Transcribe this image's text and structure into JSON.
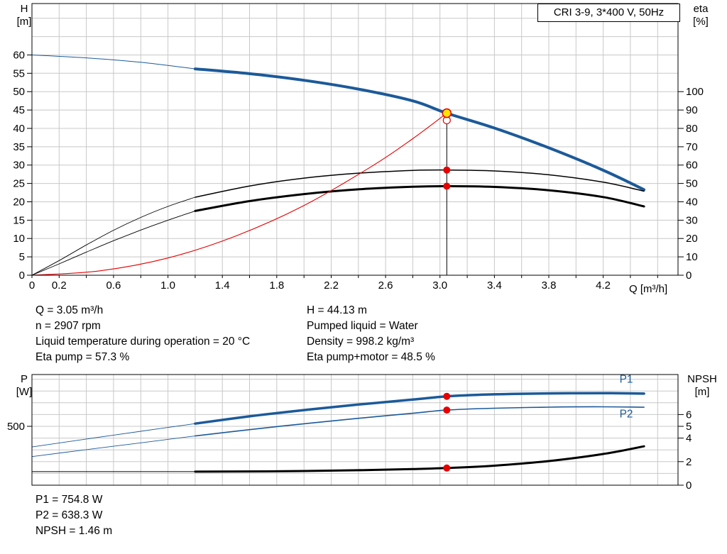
{
  "colors": {
    "curve_blue": "#1c5a99",
    "curve_black": "#000000",
    "curve_red": "#e60000",
    "marker_red": "#e60000",
    "marker_yellow": "#ffe600",
    "grid": "#c8c8c8",
    "axis": "#000000",
    "text": "#000000"
  },
  "info_left": [
    "Q = 3.05 m³/h",
    "n = 2907 rpm",
    "Liquid temperature during operation = 20 °C",
    "Eta pump = 57.3 %"
  ],
  "info_right": [
    "H = 44.13 m",
    "Pumped liquid = Water",
    "Density = 998.2 kg/m³",
    "Eta pump+motor = 48.5 %"
  ],
  "results": [
    "P1 = 754.8 W",
    "P2 = 638.3 W",
    "NPSH = 1.46 m"
  ],
  "chart_data": [
    {
      "type": "line",
      "name": "qh-eta-chart",
      "title": "CRI 3-9, 3*400 V, 50Hz",
      "xlabel": "Q [m³/h]",
      "left_axis": {
        "title": "H",
        "unit": "[m]"
      },
      "right_axis": {
        "title": "eta",
        "unit": "[%]"
      },
      "xlim": [
        0,
        4.75
      ],
      "ylim_left": [
        0,
        74
      ],
      "ylim_right": [
        0,
        148
      ],
      "grid": {
        "x_step": 0.2,
        "y_step": 5
      },
      "x_tick_step": 0.2,
      "x_ticks": [
        {
          "v": 0,
          "label": "0"
        },
        {
          "v": 0.2,
          "label": "0.2"
        },
        {
          "v": 0.6,
          "label": "0.6"
        },
        {
          "v": 1.0,
          "label": "1.0"
        },
        {
          "v": 1.4,
          "label": "1.4"
        },
        {
          "v": 1.8,
          "label": "1.8"
        },
        {
          "v": 2.2,
          "label": "2.2"
        },
        {
          "v": 2.6,
          "label": "2.6"
        },
        {
          "v": 3.0,
          "label": "3.0"
        },
        {
          "v": 3.4,
          "label": "3.4"
        },
        {
          "v": 3.8,
          "label": "3.8"
        },
        {
          "v": 4.2,
          "label": "4.2"
        }
      ],
      "left_ticks": [
        {
          "v": 0,
          "label": "0"
        },
        {
          "v": 5,
          "label": "5"
        },
        {
          "v": 10,
          "label": "10"
        },
        {
          "v": 15,
          "label": "15"
        },
        {
          "v": 20,
          "label": "20"
        },
        {
          "v": 25,
          "label": "25"
        },
        {
          "v": 30,
          "label": "30"
        },
        {
          "v": 35,
          "label": "35"
        },
        {
          "v": 40,
          "label": "40"
        },
        {
          "v": 45,
          "label": "45"
        },
        {
          "v": 50,
          "label": "50"
        },
        {
          "v": 55,
          "label": "55"
        },
        {
          "v": 60,
          "label": "60"
        }
      ],
      "right_ticks": [
        {
          "v": 0,
          "label": "0"
        },
        {
          "v": 10,
          "label": "10"
        },
        {
          "v": 20,
          "label": "20"
        },
        {
          "v": 30,
          "label": "30"
        },
        {
          "v": 40,
          "label": "40"
        },
        {
          "v": 50,
          "label": "50"
        },
        {
          "v": 60,
          "label": "60"
        },
        {
          "v": 70,
          "label": "70"
        },
        {
          "v": 80,
          "label": "80"
        },
        {
          "v": 90,
          "label": "90"
        },
        {
          "v": 100,
          "label": "100"
        }
      ],
      "series": [
        {
          "name": "head-curve-ext",
          "axis": "left",
          "color": "#1c5a99",
          "width": 1,
          "points": [
            [
              0,
              60
            ],
            [
              0.4,
              59.2
            ],
            [
              0.8,
              58.0
            ],
            [
              1.2,
              56.2
            ]
          ]
        },
        {
          "name": "head-curve",
          "axis": "left",
          "color": "#1c5a99",
          "width": 4,
          "points": [
            [
              1.2,
              56.2
            ],
            [
              1.6,
              54.9
            ],
            [
              2.0,
              53.1
            ],
            [
              2.4,
              50.7
            ],
            [
              2.8,
              47.5
            ],
            [
              3.05,
              44.13
            ],
            [
              3.4,
              40.1
            ],
            [
              3.8,
              34.7
            ],
            [
              4.2,
              28.6
            ],
            [
              4.5,
              23.3
            ]
          ]
        },
        {
          "name": "eta-pump-curve-ext",
          "axis": "right",
          "color": "#000000",
          "width": 0.9,
          "points": [
            [
              0,
              0
            ],
            [
              0.2,
              8.0
            ],
            [
              0.4,
              16.5
            ],
            [
              0.6,
              24.5
            ],
            [
              0.8,
              31.5
            ],
            [
              1.0,
              37.5
            ],
            [
              1.2,
              42.5
            ]
          ]
        },
        {
          "name": "eta-pump-curve",
          "axis": "right",
          "color": "#000000",
          "width": 1.5,
          "points": [
            [
              1.2,
              42.5
            ],
            [
              1.6,
              48.6
            ],
            [
              2.0,
              52.9
            ],
            [
              2.4,
              55.6
            ],
            [
              2.8,
              57.1
            ],
            [
              3.05,
              57.3
            ],
            [
              3.4,
              56.8
            ],
            [
              3.8,
              54.7
            ],
            [
              4.2,
              50.7
            ],
            [
              4.5,
              45.8
            ]
          ]
        },
        {
          "name": "eta-pump-motor-curve-ext",
          "axis": "right",
          "color": "#000000",
          "width": 0.9,
          "points": [
            [
              0,
              0
            ],
            [
              0.2,
              6.2
            ],
            [
              0.4,
              12.6
            ],
            [
              0.6,
              18.8
            ],
            [
              0.8,
              24.6
            ],
            [
              1.0,
              30.0
            ],
            [
              1.2,
              35.0
            ]
          ]
        },
        {
          "name": "eta-pump-motor-curve",
          "axis": "right",
          "color": "#000000",
          "width": 3,
          "points": [
            [
              1.2,
              35.0
            ],
            [
              1.6,
              40.4
            ],
            [
              2.0,
              44.2
            ],
            [
              2.4,
              46.8
            ],
            [
              2.8,
              48.2
            ],
            [
              3.05,
              48.5
            ],
            [
              3.4,
              48.1
            ],
            [
              3.8,
              46.3
            ],
            [
              4.2,
              42.6
            ],
            [
              4.5,
              37.5
            ]
          ]
        },
        {
          "name": "system-curve",
          "axis": "left",
          "color": "#e60000",
          "width": 1.1,
          "points": [
            [
              0,
              0
            ],
            [
              0.5,
              1.2
            ],
            [
              1.0,
              4.7
            ],
            [
              1.5,
              10.7
            ],
            [
              2.0,
              19.0
            ],
            [
              2.5,
              29.7
            ],
            [
              2.8,
              37.2
            ],
            [
              3.05,
              44.13
            ]
          ]
        }
      ],
      "duty_line": {
        "q": 3.05,
        "v": 44.13
      },
      "markers": [
        {
          "axis": "left",
          "q": 3.05,
          "v": 42.2,
          "style": "open"
        },
        {
          "axis": "left",
          "q": 3.05,
          "v": 44.13,
          "style": "yellow"
        },
        {
          "axis": "right",
          "q": 3.05,
          "v": 57.3,
          "style": "red"
        },
        {
          "axis": "right",
          "q": 3.05,
          "v": 48.5,
          "style": "red"
        }
      ]
    },
    {
      "type": "line",
      "name": "power-npsh-chart",
      "xlabel": "",
      "left_axis": {
        "title": "P",
        "unit": "[W]"
      },
      "right_axis": {
        "title": "NPSH",
        "unit": "[m]"
      },
      "xlim": [
        0,
        4.75
      ],
      "ylim_left": [
        0,
        940
      ],
      "ylim_right": [
        0,
        9.4
      ],
      "grid": {
        "x_step": 0.2,
        "y_step": 100
      },
      "x_ticks": [],
      "left_ticks": [
        {
          "v": 500,
          "label": "500"
        }
      ],
      "right_ticks": [
        {
          "v": 0,
          "label": "0"
        },
        {
          "v": 2,
          "label": "2"
        },
        {
          "v": 4,
          "label": "4"
        },
        {
          "v": 5,
          "label": "5"
        },
        {
          "v": 6,
          "label": "6"
        }
      ],
      "series": [
        {
          "name": "p1-curve-ext",
          "axis": "left",
          "color": "#1c5a99",
          "width": 0.9,
          "points": [
            [
              0,
              325
            ],
            [
              0.4,
              392
            ],
            [
              0.8,
              458
            ],
            [
              1.2,
              523
            ]
          ]
        },
        {
          "name": "p1-curve",
          "axis": "left",
          "color": "#1c5a99",
          "width": 3.5,
          "points": [
            [
              1.2,
              523
            ],
            [
              1.6,
              585
            ],
            [
              2.0,
              638
            ],
            [
              2.4,
              685
            ],
            [
              2.8,
              727
            ],
            [
              3.05,
              754.8
            ],
            [
              3.4,
              772
            ],
            [
              3.8,
              780
            ],
            [
              4.2,
              782
            ],
            [
              4.5,
              778
            ]
          ]
        },
        {
          "name": "p2-curve-ext",
          "axis": "left",
          "color": "#1c5a99",
          "width": 0.9,
          "points": [
            [
              0,
              243
            ],
            [
              0.4,
              302
            ],
            [
              0.8,
              360
            ],
            [
              1.2,
              418
            ]
          ]
        },
        {
          "name": "p2-curve",
          "axis": "left",
          "color": "#1c5a99",
          "width": 1.6,
          "points": [
            [
              1.2,
              418
            ],
            [
              1.6,
              472
            ],
            [
              2.0,
              522
            ],
            [
              2.4,
              568
            ],
            [
              2.8,
              611
            ],
            [
              3.05,
              638.3
            ],
            [
              3.4,
              654
            ],
            [
              3.8,
              663
            ],
            [
              4.2,
              666
            ],
            [
              4.5,
              662
            ]
          ]
        },
        {
          "name": "npsh-curve-ext",
          "axis": "right",
          "color": "#000000",
          "width": 1,
          "points": [
            [
              0,
              1.15
            ],
            [
              1.2,
              1.15
            ]
          ]
        },
        {
          "name": "npsh-curve",
          "axis": "right",
          "color": "#000000",
          "width": 3,
          "points": [
            [
              1.2,
              1.15
            ],
            [
              1.8,
              1.18
            ],
            [
              2.4,
              1.27
            ],
            [
              2.8,
              1.37
            ],
            [
              3.05,
              1.46
            ],
            [
              3.4,
              1.66
            ],
            [
              3.8,
              2.05
            ],
            [
              4.2,
              2.65
            ],
            [
              4.5,
              3.3
            ]
          ]
        }
      ],
      "markers": [
        {
          "axis": "left",
          "q": 3.05,
          "v": 754.8,
          "style": "red"
        },
        {
          "axis": "left",
          "q": 3.05,
          "v": 638.3,
          "style": "red"
        },
        {
          "axis": "right",
          "q": 3.05,
          "v": 1.46,
          "style": "red"
        }
      ],
      "curve_labels": [
        {
          "label": "P1",
          "q": 4.32,
          "axis": "left",
          "v": 870
        },
        {
          "label": "P2",
          "q": 4.32,
          "axis": "left",
          "v": 575
        }
      ]
    }
  ]
}
